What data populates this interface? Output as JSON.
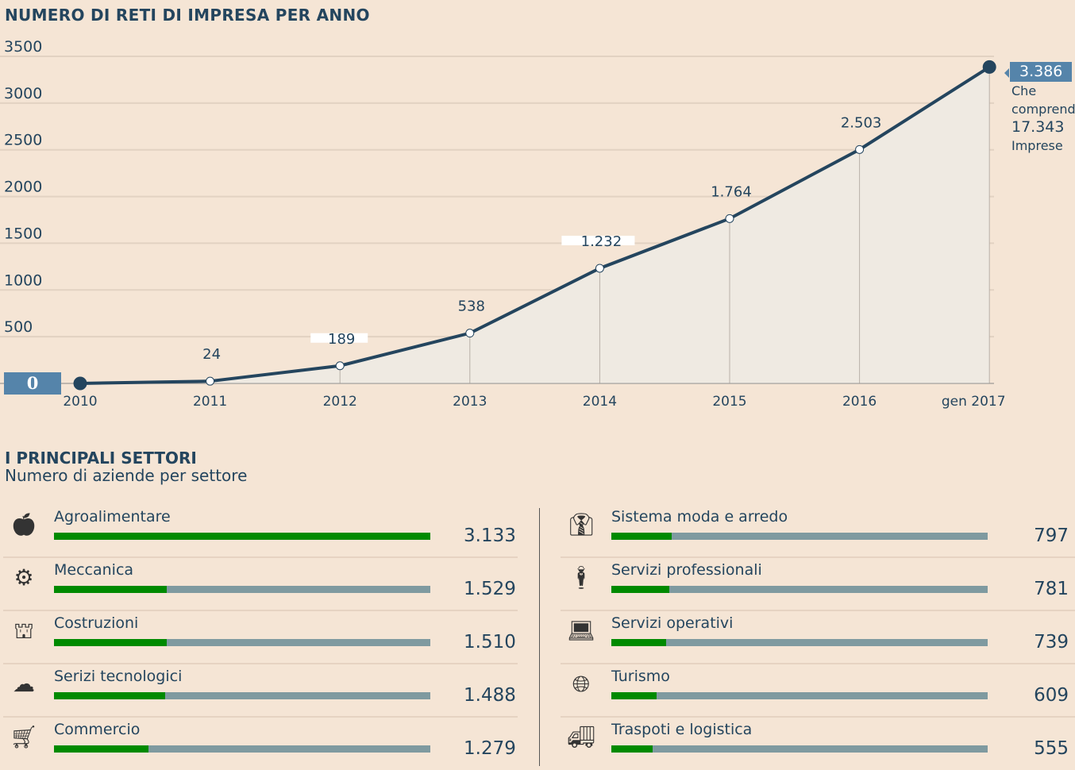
{
  "title": "NUMERO DI RETI DI IMPRESA PER ANNO",
  "chart_data": {
    "type": "line",
    "title": "NUMERO DI RETI DI IMPRESA PER ANNO",
    "categories": [
      "2010",
      "2011",
      "2012",
      "2013",
      "2014",
      "2015",
      "2016",
      "gen 2017"
    ],
    "values": [
      0,
      24,
      189,
      538,
      1232,
      1764,
      2503,
      3386
    ],
    "data_labels": [
      "0",
      "24",
      "189",
      "538",
      "1.232",
      "1.764",
      "2.503",
      "3.386"
    ],
    "yticks": [
      "0",
      "500",
      "1000",
      "1500",
      "2000",
      "2500",
      "3000",
      "3500"
    ],
    "ylim": [
      0,
      3500
    ],
    "grid": true,
    "line_color": "#24455e",
    "area_color": "#efeae2",
    "annotation": {
      "value": "3.386",
      "line1": "Che",
      "line2": "comprendono",
      "number": "17.343",
      "line3": "Imprese"
    }
  },
  "sectors": {
    "title": "I PRINCIPALI SETTORI",
    "subtitle": "Numero di aziende per settore",
    "colors": {
      "fill": "#008a00",
      "track": "#7f9aa0"
    },
    "left": [
      {
        "label": "Agroalimentare",
        "value": "3.133",
        "fill_pct": 100,
        "icon": "apple-icon"
      },
      {
        "label": "Meccanica",
        "value": "1.529",
        "fill_pct": 30,
        "icon": "gears-icon"
      },
      {
        "label": "Costruzioni",
        "value": "1.510",
        "fill_pct": 30,
        "icon": "crane-icon"
      },
      {
        "label": "Serizi tecnologici",
        "value": "1.488",
        "fill_pct": 29.5,
        "icon": "cloud-network-icon"
      },
      {
        "label": "Commercio",
        "value": "1.279",
        "fill_pct": 25,
        "icon": "shopping-cart-icon"
      }
    ],
    "right": [
      {
        "label": "Sistema moda e arredo",
        "value": "797",
        "fill_pct": 16,
        "icon": "jacket-icon"
      },
      {
        "label": "Servizi professionali",
        "value": "781",
        "fill_pct": 15.4,
        "icon": "businessman-icon"
      },
      {
        "label": "Servizi operativi",
        "value": "739",
        "fill_pct": 14.6,
        "icon": "office-worker-icon"
      },
      {
        "label": "Turismo",
        "value": "609",
        "fill_pct": 12,
        "icon": "globe-pin-icon"
      },
      {
        "label": "Traspoti e logistica",
        "value": "555",
        "fill_pct": 11,
        "icon": "truck-icon"
      }
    ]
  }
}
